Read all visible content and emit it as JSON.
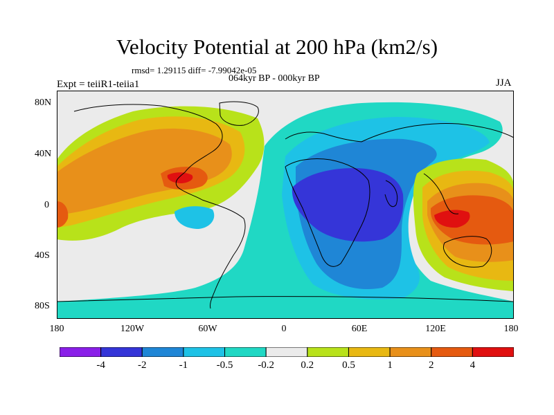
{
  "header": {
    "title": "Velocity Potential at 200 hPa (km2/s)",
    "stats": "rmsd= 1.29115 diff= -7.99042e-05",
    "subtitle": "064kyr BP - 000kyr BP",
    "experiment": "Expt = teiiR1-teiia1",
    "season": "JJA"
  },
  "axes": {
    "lat_ticks": [
      "80N",
      "40N",
      "0",
      "40S",
      "80S"
    ],
    "lon_ticks": [
      "180",
      "120W",
      "60W",
      "0",
      "60E",
      "120E",
      "180"
    ]
  },
  "colorbar": {
    "labels": [
      "-4",
      "-2",
      "-1",
      "-0.5",
      "-0.2",
      "0.2",
      "0.5",
      "1",
      "2",
      "4"
    ],
    "colors": [
      "#8a1fe8",
      "#3535d8",
      "#1f86d6",
      "#1ec2e6",
      "#20d8c4",
      "#ebebeb",
      "#b8e21a",
      "#e8b812",
      "#e8901a",
      "#e55a10",
      "#e01010"
    ]
  }
}
